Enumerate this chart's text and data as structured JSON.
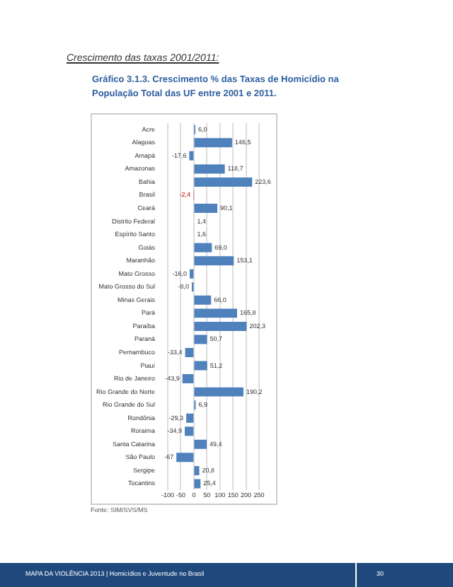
{
  "chart_data": {
    "type": "bar",
    "orientation": "horizontal",
    "title": "Gráfico 3.1.3. Crescimento % das Taxas de Homicídio na População Total das UF entre 2001 e 2011.",
    "categories": [
      "Acre",
      "Alagoas",
      "Amapá",
      "Amazonas",
      "Bahia",
      "Brasil",
      "Ceará",
      "Distrito Federal",
      "Espírito Santo",
      "Goiás",
      "Maranhão",
      "Mato Grosso",
      "Mato Grosso do Sul",
      "Minas Gerais",
      "Pará",
      "Paraíba",
      "Paraná",
      "Pernambuco",
      "Piauí",
      "Rio de Janeiro",
      "Rio Grande do Norte",
      "Rio Grande do Sul",
      "Rondônia",
      "Roraima",
      "Santa Catarina",
      "São Paulo",
      "Sergipe",
      "Tocantins"
    ],
    "values": [
      6.0,
      146.5,
      -17.6,
      118.7,
      223.6,
      -2.4,
      90.1,
      1.4,
      1.6,
      69.0,
      153.1,
      -16.0,
      -8.0,
      66.0,
      165.8,
      202.3,
      50.7,
      -33.4,
      51.2,
      -43.9,
      190.2,
      6.9,
      -29.3,
      -34.9,
      49.4,
      -67,
      20.8,
      25.4
    ],
    "value_labels": [
      "6,0",
      "146,5",
      "-17,6",
      "118,7",
      "223,6",
      "-2,4",
      "90,1",
      "1,4",
      "1,6",
      "69,0",
      "153,1",
      "-16,0",
      "-8,0",
      "66,0",
      "165,8",
      "202,3",
      "50,7",
      "-33,4",
      "51,2",
      "-43,9",
      "190,2",
      "6,9",
      "-29,3",
      "-34,9",
      "49,4",
      "-67",
      "20,8",
      "25,4"
    ],
    "colors": [
      "#4f81bd",
      "#4f81bd",
      "#4f81bd",
      "#4f81bd",
      "#4f81bd",
      "#c00000",
      "#4f81bd",
      "#4f81bd",
      "#4f81bd",
      "#4f81bd",
      "#4f81bd",
      "#4f81bd",
      "#4f81bd",
      "#4f81bd",
      "#4f81bd",
      "#4f81bd",
      "#4f81bd",
      "#4f81bd",
      "#4f81bd",
      "#4f81bd",
      "#4f81bd",
      "#4f81bd",
      "#4f81bd",
      "#4f81bd",
      "#4f81bd",
      "#4f81bd",
      "#4f81bd",
      "#4f81bd"
    ],
    "xlim": [
      -100,
      250
    ],
    "xticks": [
      -100,
      -50,
      0,
      50,
      100,
      150,
      200,
      250
    ],
    "grid": "x",
    "legend": false,
    "annotations": [
      "Crescimento das taxas 2001/2011:",
      "Fonte: SIM/SVS/MS",
      "MAPA DA VIOLÊNCIA 2013 | Homicídios e Juventude no Brasil",
      "30"
    ]
  }
}
